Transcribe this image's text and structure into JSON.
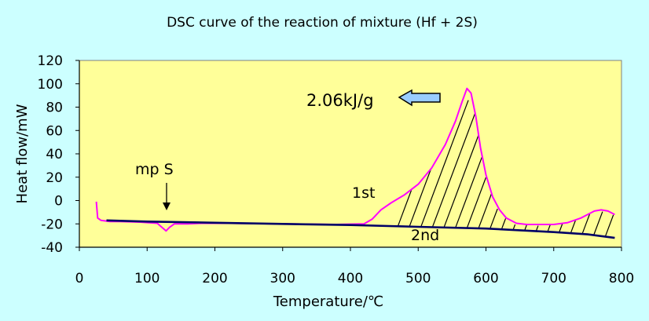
{
  "chart_data": {
    "type": "line",
    "title": "DSC curve of the reaction of  mixture (Hf + 2S)",
    "xlabel": "Temperature/℃",
    "ylabel": "Heat flow/mW",
    "xlim": [
      0,
      800
    ],
    "ylim": [
      -40,
      120
    ],
    "x_ticks": [
      "0",
      "100",
      "200",
      "300",
      "400",
      "500",
      "600",
      "700",
      "800"
    ],
    "y_ticks": [
      "-40",
      "-20",
      "0",
      "20",
      "40",
      "60",
      "80",
      "100",
      "120"
    ],
    "grid": false,
    "series": [
      {
        "name": "1st",
        "color": "#ff00ff",
        "x": [
          25,
          27,
          32,
          45,
          60,
          90,
          115,
          122,
          128,
          133,
          140,
          160,
          180,
          220,
          300,
          380,
          420,
          432,
          445,
          460,
          480,
          500,
          520,
          540,
          555,
          565,
          572,
          578,
          585,
          592,
          600,
          610,
          620,
          630,
          645,
          660,
          700,
          720,
          740,
          760,
          770,
          780,
          790
        ],
        "y": [
          -1,
          -15,
          -17,
          -18,
          -18,
          -18.5,
          -19.5,
          -23,
          -26,
          -23,
          -20,
          -20,
          -19.5,
          -19.5,
          -20,
          -20.5,
          -20,
          -16,
          -8,
          -2,
          5,
          14,
          28,
          48,
          68,
          85,
          96,
          92,
          72,
          45,
          22,
          3,
          -8,
          -15,
          -19.5,
          -20.5,
          -20.5,
          -19,
          -15,
          -9,
          -8,
          -9,
          -12
        ]
      },
      {
        "name": "2nd",
        "color": "#000066",
        "x": [
          40,
          100,
          200,
          300,
          400,
          500,
          600,
          700,
          750,
          790
        ],
        "y": [
          -17,
          -18,
          -19,
          -20,
          -21,
          -22.5,
          -24,
          -27,
          -29,
          -32
        ]
      }
    ],
    "annotations": {
      "mp_label": "mp S",
      "energy_label": "2.06kJ/g",
      "first_label": "1st",
      "second_label": "2nd"
    },
    "colors": {
      "background": "#ccffff",
      "plot_area": "#ffff99",
      "first_run": "#ff00ff",
      "second_run": "#000066",
      "arrow_fill": "#99ccff"
    }
  }
}
